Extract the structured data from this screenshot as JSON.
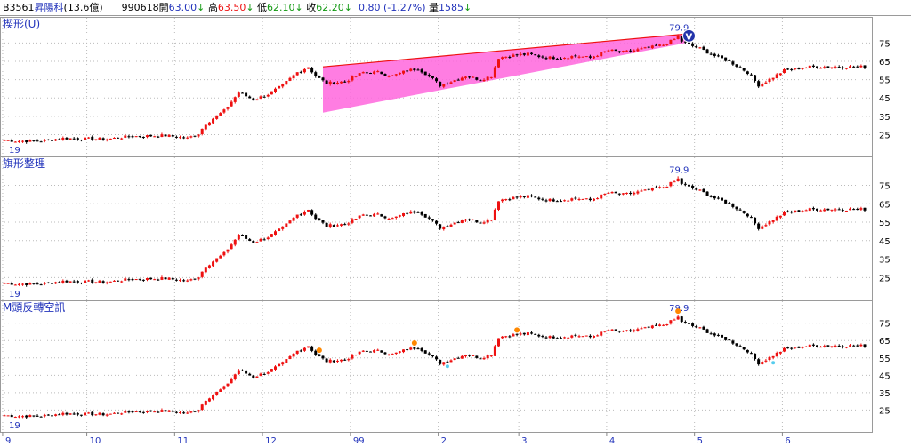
{
  "quote_bar": {
    "code": "B3561",
    "name": "昇陽科",
    "cap": "(13.6億)",
    "date": "990618",
    "open_label": "開",
    "open": "63.00",
    "open_arrow": "↓",
    "high_label": "高",
    "high": "63.50",
    "high_arrow": "↓",
    "low_label": "低",
    "low": "62.10",
    "low_arrow": "↓",
    "close_label": "收",
    "close": "62.20",
    "close_arrow": "↓",
    "change": "0.80",
    "change_pct": "(-1.27%)",
    "vol_label": "量",
    "vol": "1585",
    "vol_arrow": "↓"
  },
  "panels": [
    {
      "title": "楔形(U)",
      "corner_label": "19",
      "max_label": "79.9",
      "marker": "V"
    },
    {
      "title": "旗形整理",
      "corner_label": "19",
      "max_label": "79.9"
    },
    {
      "title": "M頭反轉空訊",
      "corner_label": "19",
      "max_label": "79.9"
    }
  ],
  "colors": {
    "up": "#ee1111",
    "down": "#000000",
    "wedge_fill": "#ff66dd",
    "wedge_line": "#ee1111",
    "marker": "#2233aa",
    "signal_dot": "#ff8800",
    "signal_dot_low": "#55ccee",
    "axis_text": "#000000",
    "title_text": "#2233bb"
  },
  "chart_data": {
    "type": "candlestick",
    "y_ticks": [
      25,
      35,
      45,
      55,
      65,
      75
    ],
    "ylim": [
      16,
      82
    ],
    "x_labels": [
      "9",
      "10",
      "11",
      "12",
      "99",
      "2",
      "3",
      "4",
      "5",
      "6"
    ],
    "x_label_index": [
      0,
      23,
      47,
      71,
      95,
      119,
      141,
      165,
      189,
      213
    ],
    "n_bars": 236,
    "close_anchors": [
      [
        0,
        22
      ],
      [
        3,
        21.5
      ],
      [
        10,
        21.5
      ],
      [
        16,
        23
      ],
      [
        28,
        22.5
      ],
      [
        34,
        24
      ],
      [
        44,
        24.5
      ],
      [
        50,
        23
      ],
      [
        53,
        25.5
      ],
      [
        55,
        31
      ],
      [
        60,
        38
      ],
      [
        64,
        48
      ],
      [
        68,
        44
      ],
      [
        72,
        47
      ],
      [
        76,
        52
      ],
      [
        80,
        59
      ],
      [
        83,
        62
      ],
      [
        85,
        57
      ],
      [
        88,
        53
      ],
      [
        93,
        54
      ],
      [
        98,
        59
      ],
      [
        102,
        59
      ],
      [
        106,
        57
      ],
      [
        110,
        60
      ],
      [
        113,
        61
      ],
      [
        116,
        57
      ],
      [
        119,
        52
      ],
      [
        122,
        54
      ],
      [
        126,
        57
      ],
      [
        130,
        55
      ],
      [
        133,
        57
      ],
      [
        135,
        67
      ],
      [
        138,
        68
      ],
      [
        143,
        69
      ],
      [
        148,
        67
      ],
      [
        152,
        67
      ],
      [
        156,
        68
      ],
      [
        160,
        67
      ],
      [
        165,
        71
      ],
      [
        169,
        70
      ],
      [
        175,
        72
      ],
      [
        180,
        74
      ],
      [
        183,
        77
      ],
      [
        185,
        76
      ],
      [
        187,
        74
      ],
      [
        190,
        72
      ],
      [
        194,
        68
      ],
      [
        198,
        65
      ],
      [
        203,
        59
      ],
      [
        206,
        52
      ],
      [
        208,
        54
      ],
      [
        213,
        60
      ],
      [
        220,
        62
      ],
      [
        227,
        62
      ],
      [
        230,
        62
      ]
    ],
    "max": {
      "value": 79.9,
      "index": 184
    },
    "wedge": {
      "start_index": 87,
      "end_index": 186,
      "upper": [
        62,
        79.9
      ],
      "lower": [
        37,
        75
      ]
    },
    "top_signals": [
      86,
      112,
      140,
      184
    ],
    "low_signals": [
      121,
      210
    ]
  }
}
